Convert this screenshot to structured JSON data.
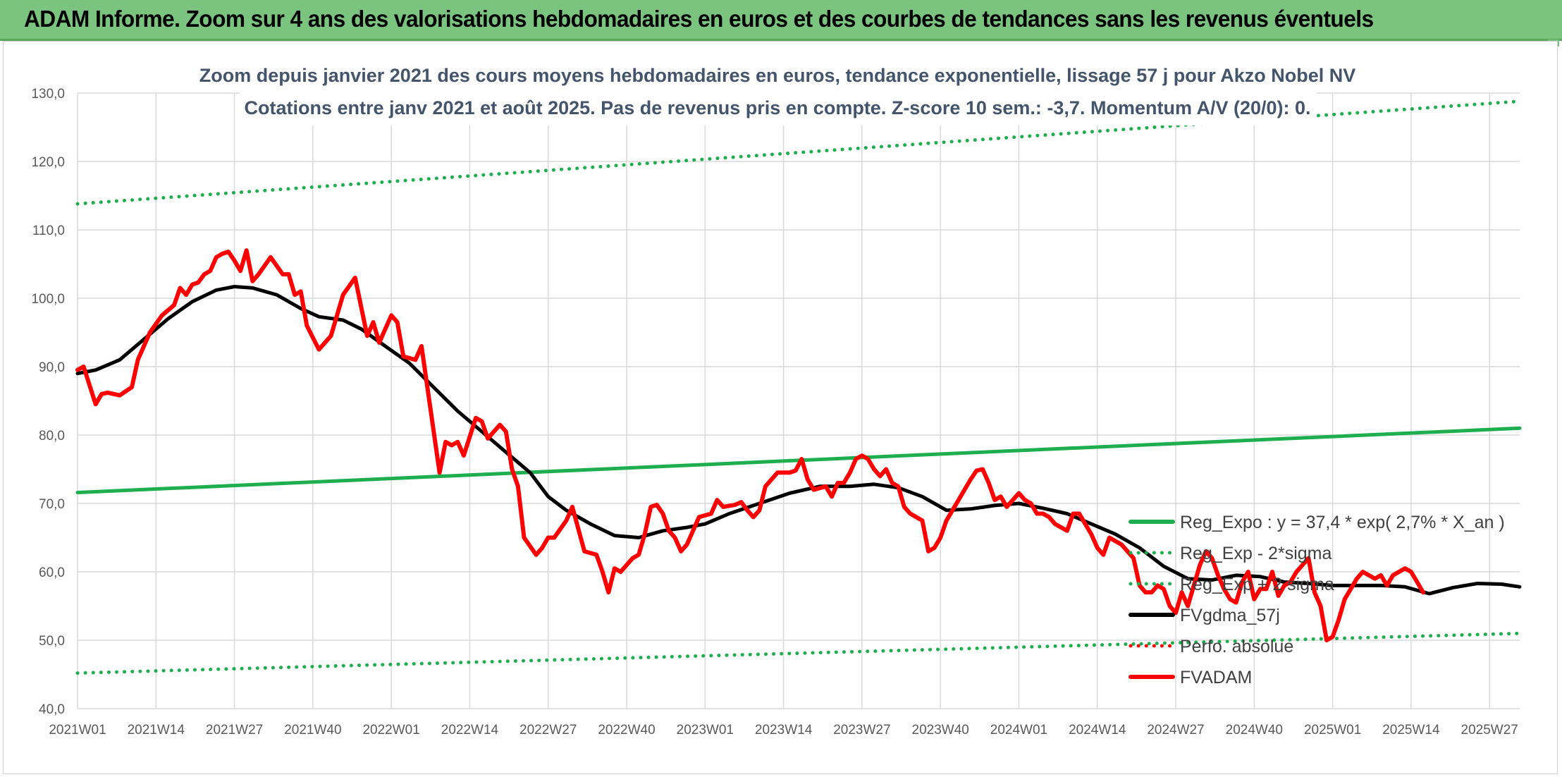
{
  "header": {
    "title": "ADAM Informe. Zoom sur 4 ans des valorisations hebdomadaires en euros et des courbes de tendances sans les revenus éventuels"
  },
  "colors": {
    "header_bg": "#7bc47f",
    "regression": "#1fae4f",
    "fvadam": "#ff0000",
    "fvgdma": "#000000",
    "grid": "#d9d9d9"
  },
  "chart_data": {
    "type": "line",
    "title": "Zoom depuis janvier 2021 des cours moyens hebdomadaires en euros, tendance exponentielle, lissage 57 j pour Akzo Nobel NV",
    "subtitle": "Cotations entre janv 2021 et août 2025. Pas de revenus pris en compte. Z-score 10 sem.: -3,7. Momentum A/V (20/0): 0.",
    "xlabel": "",
    "ylabel": "",
    "ylim": [
      40,
      130
    ],
    "y_ticks": [
      "40,0",
      "50,0",
      "60,0",
      "70,0",
      "80,0",
      "90,0",
      "100,0",
      "110,0",
      "120,0",
      "130,0"
    ],
    "x_ticks": [
      "2021W01",
      "2021W14",
      "2021W27",
      "2021W40",
      "2022W01",
      "2022W14",
      "2022W27",
      "2022W40",
      "2023W01",
      "2023W14",
      "2023W27",
      "2023W40",
      "2024W01",
      "2024W14",
      "2024W27",
      "2024W40",
      "2025W01",
      "2025W14",
      "2025W27"
    ],
    "x_start": "2021W01",
    "x_end": "2025W32",
    "grid": true,
    "legend_position": "right",
    "series": [
      {
        "name": "Reg_Expo : y = 37,4 * exp( 2,7% *  X_an )",
        "style": "solid",
        "color": "#1fae4f",
        "points": [
          [
            "2021W01",
            71.6
          ],
          [
            "2025W32",
            81.0
          ]
        ]
      },
      {
        "name": "Reg_Exp - 2*sigma",
        "style": "dotted",
        "color": "#1fae4f",
        "points": [
          [
            "2021W01",
            45.2
          ],
          [
            "2025W32",
            51.0
          ]
        ]
      },
      {
        "name": "Reg_Exp + 2 sigma",
        "style": "dotted",
        "color": "#1fae4f",
        "points": [
          [
            "2021W01",
            113.8
          ],
          [
            "2025W32",
            128.8
          ]
        ]
      },
      {
        "name": "FVgdma_57j",
        "style": "solid",
        "color": "#000000",
        "points": [
          [
            "2021W01",
            89.0
          ],
          [
            "2021W04",
            89.5
          ],
          [
            "2021W08",
            91.0
          ],
          [
            "2021W12",
            94.0
          ],
          [
            "2021W16",
            97.0
          ],
          [
            "2021W20",
            99.5
          ],
          [
            "2021W24",
            101.2
          ],
          [
            "2021W27",
            101.7
          ],
          [
            "2021W30",
            101.5
          ],
          [
            "2021W34",
            100.5
          ],
          [
            "2021W38",
            98.5
          ],
          [
            "2021W41",
            97.3
          ],
          [
            "2021W45",
            96.8
          ],
          [
            "2021W48",
            95.5
          ],
          [
            "2021W52",
            93.0
          ],
          [
            "2022W04",
            90.5
          ],
          [
            "2022W08",
            87.0
          ],
          [
            "2022W12",
            83.5
          ],
          [
            "2022W16",
            80.5
          ],
          [
            "2022W20",
            77.5
          ],
          [
            "2022W24",
            74.5
          ],
          [
            "2022W27",
            71.0
          ],
          [
            "2022W30",
            69.0
          ],
          [
            "2022W34",
            67.0
          ],
          [
            "2022W38",
            65.3
          ],
          [
            "2022W42",
            65.0
          ],
          [
            "2022W46",
            66.0
          ],
          [
            "2022W50",
            66.5
          ],
          [
            "2023W01",
            67.0
          ],
          [
            "2023W05",
            68.5
          ],
          [
            "2023W10",
            70.0
          ],
          [
            "2023W15",
            71.5
          ],
          [
            "2023W20",
            72.5
          ],
          [
            "2023W25",
            72.5
          ],
          [
            "2023W29",
            72.8
          ],
          [
            "2023W33",
            72.3
          ],
          [
            "2023W37",
            71.0
          ],
          [
            "2023W41",
            69.0
          ],
          [
            "2023W45",
            69.2
          ],
          [
            "2023W49",
            69.7
          ],
          [
            "2024W01",
            70.0
          ],
          [
            "2024W05",
            69.3
          ],
          [
            "2024W09",
            68.5
          ],
          [
            "2024W13",
            67.0
          ],
          [
            "2024W17",
            65.5
          ],
          [
            "2024W21",
            63.5
          ],
          [
            "2024W25",
            60.8
          ],
          [
            "2024W29",
            59.0
          ],
          [
            "2024W33",
            58.8
          ],
          [
            "2024W37",
            59.5
          ],
          [
            "2024W41",
            59.3
          ],
          [
            "2024W45",
            58.5
          ],
          [
            "2024W49",
            58.3
          ],
          [
            "2025W01",
            58.0
          ],
          [
            "2025W05",
            58.0
          ],
          [
            "2025W09",
            58.0
          ],
          [
            "2025W13",
            57.8
          ],
          [
            "2025W17",
            56.8
          ],
          [
            "2025W21",
            57.7
          ],
          [
            "2025W25",
            58.3
          ],
          [
            "2025W29",
            58.2
          ],
          [
            "2025W32",
            57.8
          ]
        ]
      },
      {
        "name": "Perfo. absolue",
        "style": "dotted",
        "color": "#ff0000",
        "points": []
      },
      {
        "name": "FVADAM",
        "style": "solid",
        "color": "#ff0000",
        "points": [
          [
            "2021W01",
            89.5
          ],
          [
            "2021W02",
            90.0
          ],
          [
            "2021W04",
            84.5
          ],
          [
            "2021W05",
            86.0
          ],
          [
            "2021W06",
            86.2
          ],
          [
            "2021W08",
            85.8
          ],
          [
            "2021W10",
            87.0
          ],
          [
            "2021W11",
            91.0
          ],
          [
            "2021W13",
            95.0
          ],
          [
            "2021W15",
            97.5
          ],
          [
            "2021W17",
            99.0
          ],
          [
            "2021W18",
            101.5
          ],
          [
            "2021W19",
            100.5
          ],
          [
            "2021W20",
            102.0
          ],
          [
            "2021W21",
            102.3
          ],
          [
            "2021W22",
            103.5
          ],
          [
            "2021W23",
            104.0
          ],
          [
            "2021W24",
            106.0
          ],
          [
            "2021W25",
            106.5
          ],
          [
            "2021W26",
            106.8
          ],
          [
            "2021W27",
            105.5
          ],
          [
            "2021W28",
            104.0
          ],
          [
            "2021W29",
            107.0
          ],
          [
            "2021W30",
            102.5
          ],
          [
            "2021W31",
            103.5
          ],
          [
            "2021W33",
            106.0
          ],
          [
            "2021W35",
            103.5
          ],
          [
            "2021W36",
            103.5
          ],
          [
            "2021W37",
            100.5
          ],
          [
            "2021W38",
            101.0
          ],
          [
            "2021W39",
            96.0
          ],
          [
            "2021W41",
            92.5
          ],
          [
            "2021W43",
            94.5
          ],
          [
            "2021W45",
            100.5
          ],
          [
            "2021W47",
            103.0
          ],
          [
            "2021W49",
            94.5
          ],
          [
            "2021W50",
            96.5
          ],
          [
            "2021W51",
            93.5
          ],
          [
            "2022W01",
            97.5
          ],
          [
            "2022W02",
            96.5
          ],
          [
            "2022W03",
            91.5
          ],
          [
            "2022W05",
            91.0
          ],
          [
            "2022W06",
            93.0
          ],
          [
            "2022W09",
            74.5
          ],
          [
            "2022W10",
            79.0
          ],
          [
            "2022W11",
            78.5
          ],
          [
            "2022W12",
            79.0
          ],
          [
            "2022W13",
            77.0
          ],
          [
            "2022W15",
            82.5
          ],
          [
            "2022W16",
            82.0
          ],
          [
            "2022W17",
            79.5
          ],
          [
            "2022W19",
            81.5
          ],
          [
            "2022W20",
            80.5
          ],
          [
            "2022W21",
            75.0
          ],
          [
            "2022W22",
            72.5
          ],
          [
            "2022W23",
            65.0
          ],
          [
            "2022W25",
            62.5
          ],
          [
            "2022W26",
            63.5
          ],
          [
            "2022W27",
            65.0
          ],
          [
            "2022W28",
            65.0
          ],
          [
            "2022W30",
            67.5
          ],
          [
            "2022W31",
            69.5
          ],
          [
            "2022W33",
            63.0
          ],
          [
            "2022W35",
            62.5
          ],
          [
            "2022W36",
            60.0
          ],
          [
            "2022W37",
            57.0
          ],
          [
            "2022W38",
            60.5
          ],
          [
            "2022W39",
            60.0
          ],
          [
            "2022W40",
            61.0
          ],
          [
            "2022W41",
            62.0
          ],
          [
            "2022W42",
            62.5
          ],
          [
            "2022W43",
            65.5
          ],
          [
            "2022W44",
            69.5
          ],
          [
            "2022W45",
            69.8
          ],
          [
            "2022W46",
            68.5
          ],
          [
            "2022W47",
            66.0
          ],
          [
            "2022W48",
            65.0
          ],
          [
            "2022W49",
            63.0
          ],
          [
            "2022W50",
            64.0
          ],
          [
            "2022W52",
            68.0
          ],
          [
            "2023W02",
            68.5
          ],
          [
            "2023W03",
            70.5
          ],
          [
            "2023W04",
            69.5
          ],
          [
            "2023W06",
            69.8
          ],
          [
            "2023W07",
            70.2
          ],
          [
            "2023W08",
            69.0
          ],
          [
            "2023W09",
            68.0
          ],
          [
            "2023W10",
            69.0
          ],
          [
            "2023W11",
            72.5
          ],
          [
            "2023W12",
            73.5
          ],
          [
            "2023W13",
            74.5
          ],
          [
            "2023W15",
            74.5
          ],
          [
            "2023W16",
            74.8
          ],
          [
            "2023W17",
            76.5
          ],
          [
            "2023W18",
            73.5
          ],
          [
            "2023W19",
            72.0
          ],
          [
            "2023W21",
            72.5
          ],
          [
            "2023W22",
            71.0
          ],
          [
            "2023W23",
            73.0
          ],
          [
            "2023W24",
            73.0
          ],
          [
            "2023W25",
            74.5
          ],
          [
            "2023W26",
            76.5
          ],
          [
            "2023W27",
            77.0
          ],
          [
            "2023W28",
            76.5
          ],
          [
            "2023W29",
            75.0
          ],
          [
            "2023W30",
            74.0
          ],
          [
            "2023W31",
            75.0
          ],
          [
            "2023W32",
            73.0
          ],
          [
            "2023W33",
            72.5
          ],
          [
            "2023W34",
            69.5
          ],
          [
            "2023W35",
            68.5
          ],
          [
            "2023W36",
            68.0
          ],
          [
            "2023W37",
            67.5
          ],
          [
            "2023W38",
            63.0
          ],
          [
            "2023W39",
            63.5
          ],
          [
            "2023W40",
            65.0
          ],
          [
            "2023W41",
            67.5
          ],
          [
            "2023W42",
            69.0
          ],
          [
            "2023W44",
            72.0
          ],
          [
            "2023W45",
            73.5
          ],
          [
            "2023W46",
            74.8
          ],
          [
            "2023W47",
            75.0
          ],
          [
            "2023W48",
            73.0
          ],
          [
            "2023W49",
            70.5
          ],
          [
            "2023W50",
            71.0
          ],
          [
            "2023W51",
            69.5
          ],
          [
            "2024W01",
            71.5
          ],
          [
            "2024W02",
            70.5
          ],
          [
            "2024W03",
            70.0
          ],
          [
            "2024W04",
            68.5
          ],
          [
            "2024W05",
            68.5
          ],
          [
            "2024W06",
            68.0
          ],
          [
            "2024W07",
            67.0
          ],
          [
            "2024W08",
            66.5
          ],
          [
            "2024W09",
            66.0
          ],
          [
            "2024W10",
            68.5
          ],
          [
            "2024W11",
            68.5
          ],
          [
            "2024W12",
            67.0
          ],
          [
            "2024W13",
            65.5
          ],
          [
            "2024W14",
            63.5
          ],
          [
            "2024W15",
            62.5
          ],
          [
            "2024W16",
            65.0
          ],
          [
            "2024W17",
            64.5
          ],
          [
            "2024W18",
            64.0
          ],
          [
            "2024W19",
            63.0
          ],
          [
            "2024W20",
            62.0
          ],
          [
            "2024W21",
            58.0
          ],
          [
            "2024W22",
            57.0
          ],
          [
            "2024W23",
            57.0
          ],
          [
            "2024W24",
            58.0
          ],
          [
            "2024W25",
            57.5
          ],
          [
            "2024W26",
            55.0
          ],
          [
            "2024W27",
            54.0
          ],
          [
            "2024W28",
            57.0
          ],
          [
            "2024W29",
            55.0
          ],
          [
            "2024W30",
            58.0
          ],
          [
            "2024W31",
            61.0
          ],
          [
            "2024W32",
            63.0
          ],
          [
            "2024W33",
            62.0
          ],
          [
            "2024W34",
            59.5
          ],
          [
            "2024W35",
            57.5
          ],
          [
            "2024W36",
            56.0
          ],
          [
            "2024W37",
            55.5
          ],
          [
            "2024W38",
            58.5
          ],
          [
            "2024W39",
            60.0
          ],
          [
            "2024W40",
            56.0
          ],
          [
            "2024W41",
            57.5
          ],
          [
            "2024W42",
            57.5
          ],
          [
            "2024W43",
            60.0
          ],
          [
            "2024W44",
            56.5
          ],
          [
            "2024W45",
            58.0
          ],
          [
            "2024W46",
            58.5
          ],
          [
            "2024W47",
            60.0
          ],
          [
            "2024W48",
            61.0
          ],
          [
            "2024W49",
            62.0
          ],
          [
            "2024W50",
            57.0
          ],
          [
            "2024W51",
            55.0
          ],
          [
            "2024W52",
            50.0
          ],
          [
            "2025W01",
            50.5
          ],
          [
            "2025W02",
            53.0
          ],
          [
            "2025W03",
            56.0
          ],
          [
            "2025W04",
            57.5
          ],
          [
            "2025W05",
            59.0
          ],
          [
            "2025W06",
            60.0
          ],
          [
            "2025W07",
            59.5
          ],
          [
            "2025W08",
            59.0
          ],
          [
            "2025W09",
            59.5
          ],
          [
            "2025W10",
            58.0
          ],
          [
            "2025W11",
            59.5
          ],
          [
            "2025W12",
            60.0
          ],
          [
            "2025W13",
            60.5
          ],
          [
            "2025W14",
            60.0
          ],
          [
            "2025W15",
            58.5
          ],
          [
            "2025W16",
            57.0
          ]
        ]
      }
    ]
  }
}
